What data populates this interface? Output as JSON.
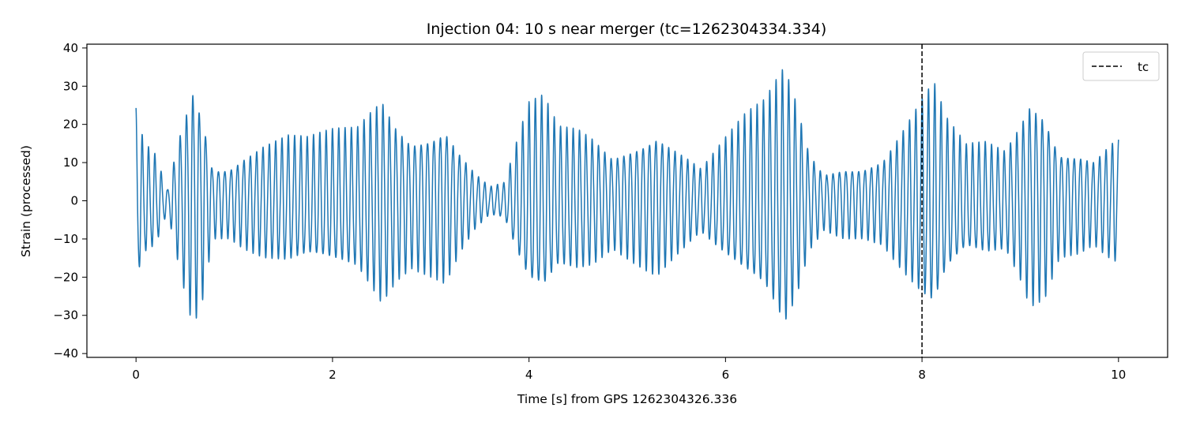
{
  "chart_data": {
    "type": "line",
    "title": "Injection 04: 10 s near merger (tc=1262304334.334)",
    "xlabel": "Time [s] from GPS 1262304326.336",
    "ylabel": "Strain (processed)",
    "xlim": [
      -0.5,
      10.5
    ],
    "ylim": [
      -41,
      41
    ],
    "xticks": [
      0,
      2,
      4,
      6,
      8,
      10
    ],
    "yticks": [
      -40,
      -30,
      -20,
      -10,
      0,
      10,
      20,
      30,
      40
    ],
    "grid": false,
    "legend": {
      "placement": "top-right",
      "entries": [
        {
          "label": "tc",
          "style": "dashed",
          "color": "#000000"
        }
      ]
    },
    "series": [
      {
        "color": "#1f77b4",
        "x_start": 0,
        "x_end": 10,
        "carrier_hz": 15.5,
        "envelope": [
          [
            0.0,
            25
          ],
          [
            0.08,
            16
          ],
          [
            0.2,
            13
          ],
          [
            0.32,
            3
          ],
          [
            0.45,
            20
          ],
          [
            0.58,
            34
          ],
          [
            0.68,
            26
          ],
          [
            0.78,
            10
          ],
          [
            0.95,
            10
          ],
          [
            1.1,
            13
          ],
          [
            1.3,
            16
          ],
          [
            1.55,
            18
          ],
          [
            1.75,
            17
          ],
          [
            2.0,
            19
          ],
          [
            2.25,
            20
          ],
          [
            2.5,
            29
          ],
          [
            2.65,
            22
          ],
          [
            2.8,
            18
          ],
          [
            3.0,
            20
          ],
          [
            3.15,
            22
          ],
          [
            3.3,
            14
          ],
          [
            3.45,
            8
          ],
          [
            3.6,
            4
          ],
          [
            3.75,
            5
          ],
          [
            3.9,
            18
          ],
          [
            4.0,
            26
          ],
          [
            4.15,
            28
          ],
          [
            4.3,
            20
          ],
          [
            4.5,
            20
          ],
          [
            4.65,
            18
          ],
          [
            4.85,
            13
          ],
          [
            5.1,
            17
          ],
          [
            5.3,
            20
          ],
          [
            5.5,
            15
          ],
          [
            5.75,
            9
          ],
          [
            6.0,
            17
          ],
          [
            6.2,
            23
          ],
          [
            6.4,
            27
          ],
          [
            6.6,
            37
          ],
          [
            6.72,
            28
          ],
          [
            6.85,
            14
          ],
          [
            7.0,
            8
          ],
          [
            7.2,
            10
          ],
          [
            7.4,
            10
          ],
          [
            7.6,
            12
          ],
          [
            7.8,
            20
          ],
          [
            8.0,
            28
          ],
          [
            8.12,
            32
          ],
          [
            8.25,
            22
          ],
          [
            8.45,
            15
          ],
          [
            8.65,
            16
          ],
          [
            8.85,
            14
          ],
          [
            9.0,
            22
          ],
          [
            9.1,
            29
          ],
          [
            9.25,
            26
          ],
          [
            9.4,
            15
          ],
          [
            9.6,
            14
          ],
          [
            9.75,
            12
          ],
          [
            9.9,
            16
          ],
          [
            10.0,
            18
          ]
        ]
      }
    ],
    "vlines": [
      {
        "x": 8.0,
        "style": "dashed",
        "color": "#000000",
        "label": "tc"
      }
    ]
  }
}
